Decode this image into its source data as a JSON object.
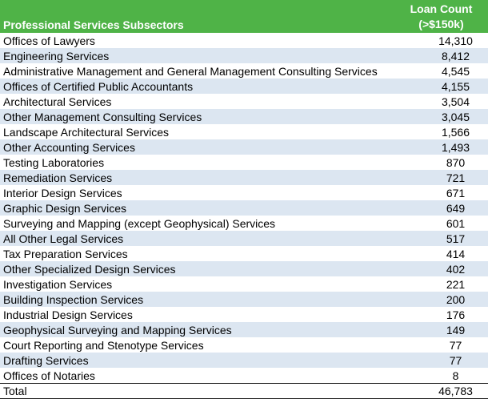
{
  "table": {
    "header": {
      "subsector": "Professional Services Subsectors",
      "count_line1": "Loan Count",
      "count_line2": "(>$150k)"
    },
    "rows": [
      {
        "name": "Offices of Lawyers",
        "count": "14,310"
      },
      {
        "name": "Engineering Services",
        "count": "8,412"
      },
      {
        "name": "Administrative Management and General Management Consulting Services",
        "count": "4,545"
      },
      {
        "name": "Offices of Certified Public Accountants",
        "count": "4,155"
      },
      {
        "name": "Architectural Services",
        "count": "3,504"
      },
      {
        "name": "Other Management Consulting Services",
        "count": "3,045"
      },
      {
        "name": "Landscape Architectural Services",
        "count": "1,566"
      },
      {
        "name": "Other Accounting Services",
        "count": "1,493"
      },
      {
        "name": "Testing Laboratories",
        "count": "870"
      },
      {
        "name": "Remediation Services",
        "count": "721"
      },
      {
        "name": "Interior Design Services",
        "count": "671"
      },
      {
        "name": "Graphic Design Services",
        "count": "649"
      },
      {
        "name": "Surveying and Mapping (except Geophysical) Services",
        "count": "601"
      },
      {
        "name": "All Other Legal Services",
        "count": "517"
      },
      {
        "name": "Tax Preparation Services",
        "count": "414"
      },
      {
        "name": "Other Specialized Design Services",
        "count": "402"
      },
      {
        "name": "Investigation Services",
        "count": "221"
      },
      {
        "name": "Building Inspection Services",
        "count": "200"
      },
      {
        "name": "Industrial Design Services",
        "count": "176"
      },
      {
        "name": "Geophysical Surveying and Mapping Services",
        "count": "149"
      },
      {
        "name": "Court Reporting and Stenotype Services",
        "count": "77"
      },
      {
        "name": "Drafting Services",
        "count": "77"
      },
      {
        "name": "Offices of Notaries",
        "count": "8"
      }
    ],
    "total": {
      "name": "Total",
      "count": "46,783"
    }
  },
  "colors": {
    "header_bg": "#4fb347",
    "header_text": "#ffffff",
    "stripe": "#dce6f1"
  }
}
